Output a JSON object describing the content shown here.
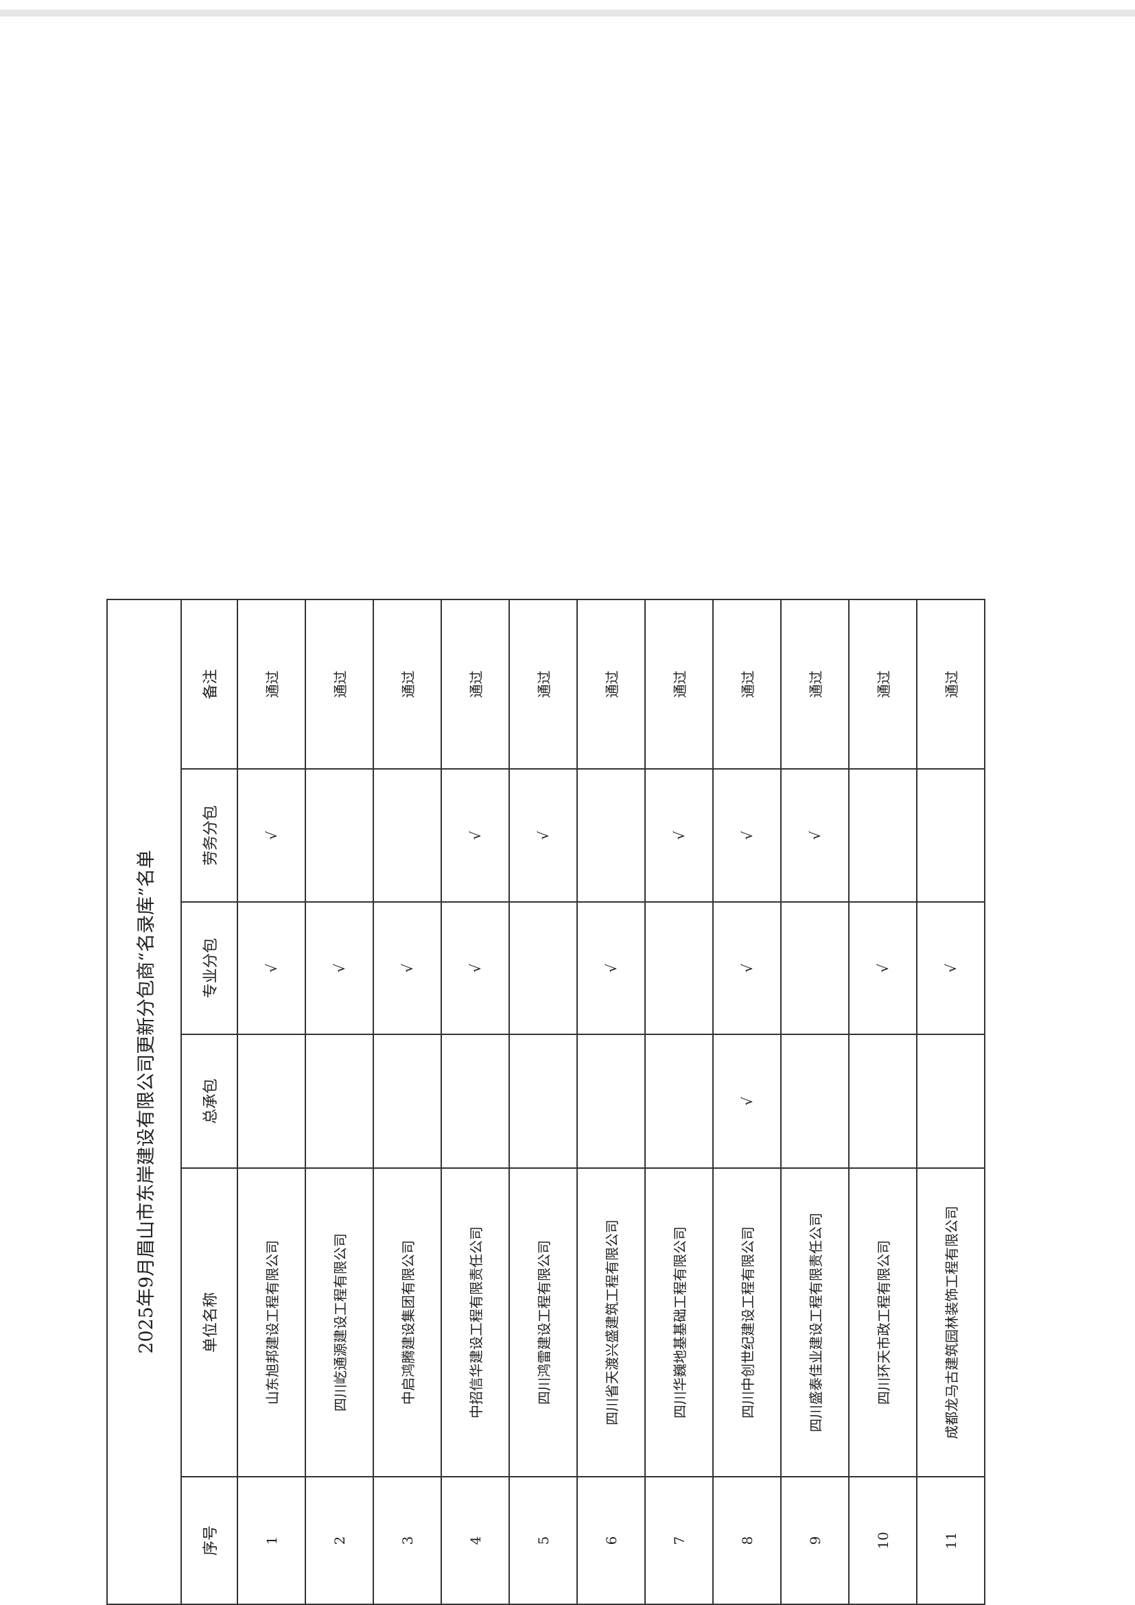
{
  "title": "2025年9月眉山市东岸建设有限公司更新分包商“名录库”名单",
  "headers": {
    "no": "序号",
    "name": "单位名称",
    "general": "总承包",
    "specialty": "专业分包",
    "labor": "劳务分包",
    "remark": "备注"
  },
  "check_mark": "√",
  "rows": [
    {
      "no": "1",
      "name": "山东旭邦建设工程有限公司",
      "general": "",
      "specialty": "√",
      "labor": "√",
      "remark": "通过"
    },
    {
      "no": "2",
      "name": "四川屹通源建设工程有限公司",
      "general": "",
      "specialty": "√",
      "labor": "",
      "remark": "通过"
    },
    {
      "no": "3",
      "name": "中启鸿腾建设集团有限公司",
      "general": "",
      "specialty": "√",
      "labor": "",
      "remark": "通过"
    },
    {
      "no": "4",
      "name": "中招信华建设工程有限责任公司",
      "general": "",
      "specialty": "√",
      "labor": "√",
      "remark": "通过"
    },
    {
      "no": "5",
      "name": "四川鸿雷建设工程有限公司",
      "general": "",
      "specialty": "",
      "labor": "√",
      "remark": "通过"
    },
    {
      "no": "6",
      "name": "四川省天渡兴盛建筑工程有限公司",
      "general": "",
      "specialty": "√",
      "labor": "",
      "remark": "通过"
    },
    {
      "no": "7",
      "name": "四川华巍地基基础工程有限公司",
      "general": "",
      "specialty": "",
      "labor": "√",
      "remark": "通过"
    },
    {
      "no": "8",
      "name": "四川中创世纪建设工程有限公司",
      "general": "√",
      "specialty": "√",
      "labor": "√",
      "remark": "通过"
    },
    {
      "no": "9",
      "name": "四川盛泰佳业建设工程有限责任公司",
      "general": "",
      "specialty": "",
      "labor": "√",
      "remark": "通过"
    },
    {
      "no": "10",
      "name": "四川环天市政工程有限公司",
      "general": "",
      "specialty": "√",
      "labor": "",
      "remark": "通过"
    },
    {
      "no": "11",
      "name": "成都龙马古建筑园林装饰工程有限公司",
      "general": "",
      "specialty": "√",
      "labor": "",
      "remark": "通过"
    }
  ]
}
